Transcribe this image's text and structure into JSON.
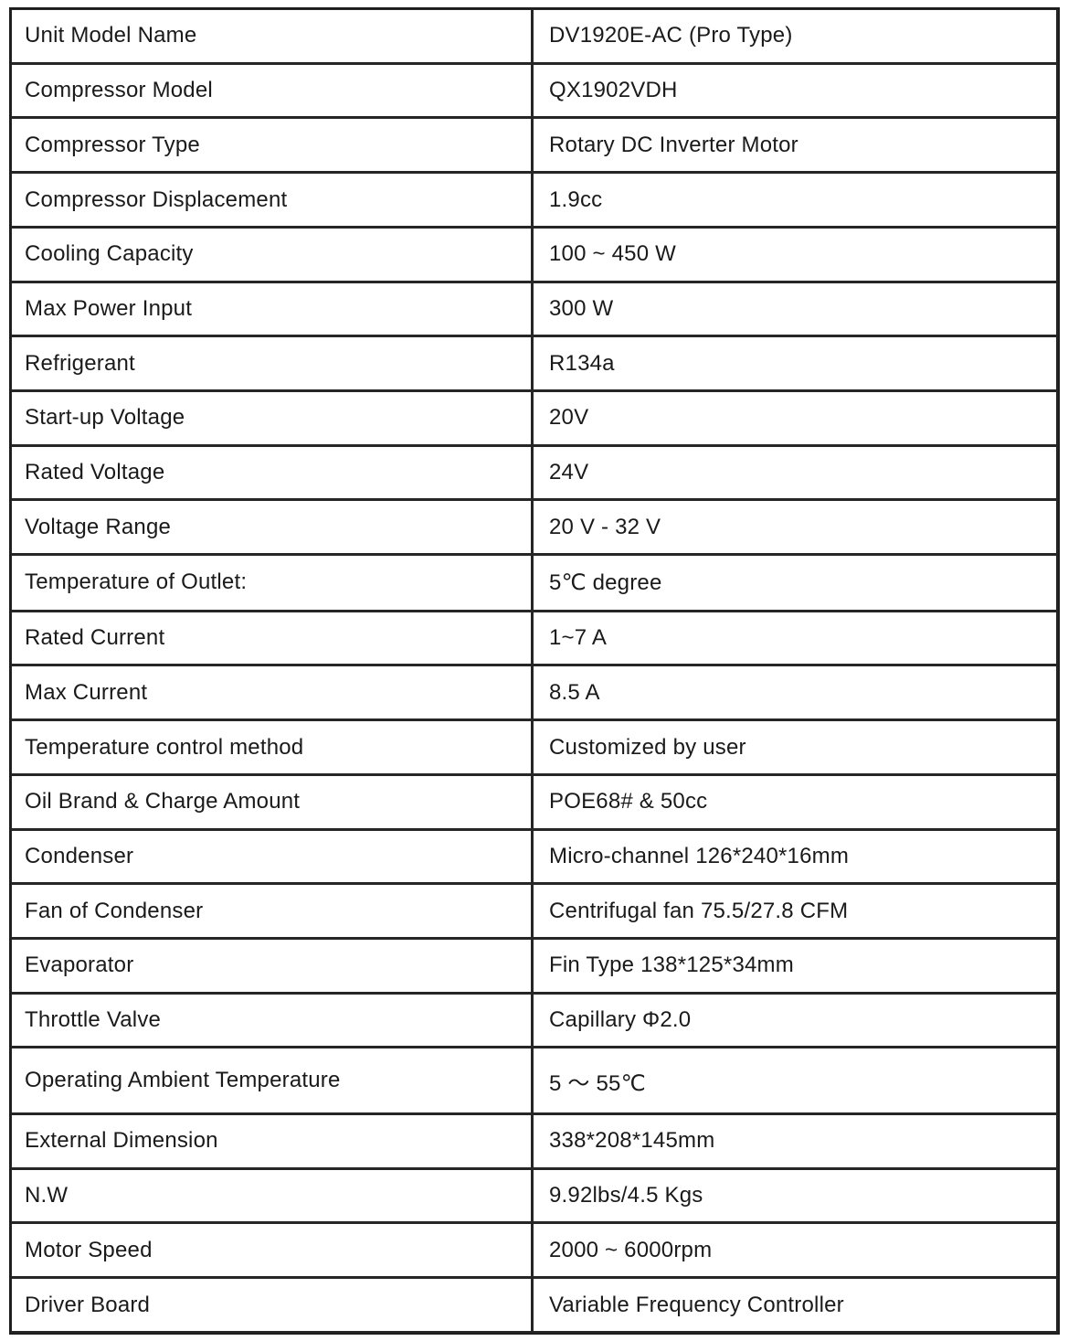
{
  "colors": {
    "border": "#262626",
    "text": "#1a1a1a",
    "background": "#ffffff"
  },
  "table": {
    "rows": [
      {
        "label": "Unit Model Name",
        "value": "DV1920E-AC (Pro Type)"
      },
      {
        "label": "Compressor Model",
        "value": "QX1902VDH"
      },
      {
        "label": "Compressor Type",
        "value": "Rotary DC Inverter Motor"
      },
      {
        "label": "Compressor Displacement",
        "value": "1.9cc"
      },
      {
        "label": "Cooling Capacity",
        "value": "100 ~ 450 W"
      },
      {
        "label": "Max Power Input",
        "value": "300 W"
      },
      {
        "label": "Refrigerant",
        "value": "R134a"
      },
      {
        "label": "Start-up Voltage",
        "value": "20V"
      },
      {
        "label": "Rated Voltage",
        "value": "24V"
      },
      {
        "label": "Voltage Range",
        "value": "20 V - 32 V"
      },
      {
        "label": "Temperature of Outlet:",
        "value": "5℃ degree"
      },
      {
        "label": "Rated Current",
        "value": "1~7 A"
      },
      {
        "label": "Max Current",
        "value": "8.5 A"
      },
      {
        "label": "Temperature control method",
        "value": "Customized by user"
      },
      {
        "label": "Oil Brand & Charge Amount",
        "value": "POE68# & 50cc"
      },
      {
        "label": "Condenser",
        "value": "Micro-channel 126*240*16mm"
      },
      {
        "label": "Fan of Condenser",
        "value": "Centrifugal fan 75.5/27.8 CFM"
      },
      {
        "label": "Evaporator",
        "value": "Fin Type 138*125*34mm"
      },
      {
        "label": "Throttle Valve",
        "value": "Capillary Φ2.0"
      },
      {
        "label": "Operating Ambient Temperature",
        "value": "5 ～ 55℃"
      },
      {
        "label": "External Dimension",
        "value": "338*208*145mm"
      },
      {
        "label": "N.W",
        "value": "9.92lbs/4.5 Kgs"
      },
      {
        "label": "Motor Speed",
        "value": "2000 ~ 6000rpm"
      },
      {
        "label": "Driver Board",
        "value": "Variable Frequency Controller"
      }
    ]
  }
}
